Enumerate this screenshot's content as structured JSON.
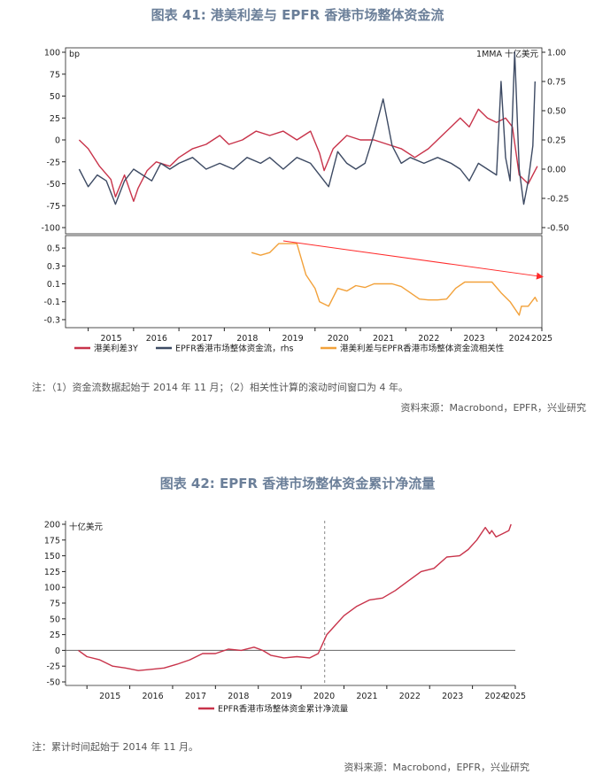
{
  "figure41": {
    "title": "图表 41: 港美利差与 EPFR 香港市场整体资金流",
    "note": "注：（1）资金流数据起始于 2014 年 11 月；（2）相关性计算的滚动时间窗口为 4 年。",
    "source": "资料来源：Macrobond，EPFR，兴业研究"
  },
  "figure42": {
    "title": "图表 42: EPFR 香港市场整体资金累计净流量",
    "note": "注：累计时间起始于 2014 年 11 月。",
    "source": "资料来源：Macrobond，EPFR，兴业研究"
  },
  "chart_data": [
    {
      "type": "line",
      "panel": "top",
      "left_unit": "bp",
      "right_unit": "1MMA 十亿美元",
      "x_ticks": [
        "2015",
        "2016",
        "2017",
        "2018",
        "2019",
        "2020",
        "2021",
        "2022",
        "2023",
        "2024",
        "2025"
      ],
      "y_left_ticks": [
        "100",
        "75",
        "50",
        "25",
        "0",
        "-25",
        "-50",
        "-75",
        "-100"
      ],
      "y_right_ticks": [
        "1.00",
        "0.75",
        "0.50",
        "0.25",
        "0.00",
        "-0.25",
        "-0.50"
      ],
      "ylim_left": [
        -100,
        100
      ],
      "ylim_right": [
        -0.5,
        1.0
      ],
      "series": [
        {
          "name": "港美利差3Y",
          "axis": "left",
          "color": "#c8334a",
          "x": [
            2014.8,
            2015.0,
            2015.25,
            2015.5,
            2015.6,
            2015.8,
            2016.0,
            2016.1,
            2016.3,
            2016.5,
            2016.8,
            2017.0,
            2017.3,
            2017.6,
            2017.9,
            2018.1,
            2018.4,
            2018.7,
            2019.0,
            2019.3,
            2019.6,
            2019.9,
            2020.1,
            2020.2,
            2020.4,
            2020.7,
            2021.0,
            2021.3,
            2021.6,
            2021.9,
            2022.2,
            2022.5,
            2022.8,
            2023.0,
            2023.2,
            2023.4,
            2023.6,
            2023.8,
            2024.0,
            2024.2,
            2024.35,
            2024.5,
            2024.7,
            2024.9
          ],
          "values": [
            0,
            -10,
            -30,
            -45,
            -65,
            -40,
            -70,
            -55,
            -35,
            -25,
            -30,
            -20,
            -10,
            -5,
            5,
            -5,
            0,
            10,
            5,
            10,
            0,
            10,
            -15,
            -35,
            -10,
            5,
            0,
            0,
            -5,
            -10,
            -20,
            -10,
            5,
            15,
            25,
            15,
            35,
            25,
            20,
            25,
            15,
            -40,
            -50,
            -30
          ]
        },
        {
          "name": "EPFR香港市场整体资金流，rhs",
          "axis": "right",
          "color": "#3d4a63",
          "x": [
            2014.8,
            2015.0,
            2015.2,
            2015.4,
            2015.6,
            2015.8,
            2016.0,
            2016.2,
            2016.4,
            2016.6,
            2016.8,
            2017.0,
            2017.3,
            2017.6,
            2017.9,
            2018.2,
            2018.5,
            2018.8,
            2019.0,
            2019.3,
            2019.6,
            2019.9,
            2020.1,
            2020.3,
            2020.5,
            2020.7,
            2020.9,
            2021.1,
            2021.3,
            2021.5,
            2021.7,
            2021.9,
            2022.1,
            2022.4,
            2022.7,
            2023.0,
            2023.2,
            2023.4,
            2023.6,
            2023.8,
            2024.0,
            2024.1,
            2024.2,
            2024.3,
            2024.4,
            2024.5,
            2024.6,
            2024.7,
            2024.8,
            2024.85
          ],
          "values": [
            0.0,
            -0.15,
            -0.05,
            -0.1,
            -0.3,
            -0.1,
            0.0,
            -0.05,
            -0.1,
            0.05,
            0.0,
            0.05,
            0.1,
            0.0,
            0.05,
            0.0,
            0.1,
            0.05,
            0.1,
            0.0,
            0.1,
            0.05,
            -0.05,
            -0.15,
            0.15,
            0.05,
            0.0,
            0.05,
            0.3,
            0.6,
            0.2,
            0.05,
            0.1,
            0.05,
            0.1,
            0.05,
            0.0,
            -0.1,
            0.05,
            0.0,
            -0.05,
            0.75,
            0.1,
            -0.1,
            1.0,
            0.0,
            -0.3,
            -0.1,
            0.2,
            0.75
          ]
        }
      ]
    },
    {
      "type": "line",
      "panel": "bottom",
      "x_ticks": [
        "2015",
        "2016",
        "2017",
        "2018",
        "2019",
        "2020",
        "2021",
        "2022",
        "2023",
        "2024",
        "2025"
      ],
      "y_ticks": [
        "0.5",
        "0.3",
        "0.1",
        "-0.1",
        "-0.3"
      ],
      "ylim": [
        -0.35,
        0.6
      ],
      "series": [
        {
          "name": "港美利差与EPFR香港市场整体资金流相关性",
          "color": "#f2a13a",
          "x": [
            2018.6,
            2018.8,
            2019.0,
            2019.2,
            2019.4,
            2019.6,
            2019.8,
            2020.0,
            2020.1,
            2020.3,
            2020.5,
            2020.7,
            2020.9,
            2021.1,
            2021.3,
            2021.5,
            2021.7,
            2021.9,
            2022.1,
            2022.3,
            2022.5,
            2022.7,
            2022.9,
            2023.1,
            2023.3,
            2023.5,
            2023.7,
            2023.9,
            2024.1,
            2024.3,
            2024.5,
            2024.55,
            2024.7,
            2024.85,
            2024.9
          ],
          "values": [
            0.45,
            0.42,
            0.45,
            0.55,
            0.55,
            0.55,
            0.2,
            0.05,
            -0.1,
            -0.15,
            0.05,
            0.02,
            0.08,
            0.06,
            0.1,
            0.1,
            0.1,
            0.07,
            0.0,
            -0.07,
            -0.08,
            -0.08,
            -0.07,
            0.05,
            0.12,
            0.12,
            0.12,
            0.12,
            0.0,
            -0.1,
            -0.25,
            -0.15,
            -0.15,
            -0.05,
            -0.1
          ]
        }
      ],
      "annotation": {
        "type": "arrow",
        "from": [
          2019.3,
          0.58
        ],
        "to": [
          2025.0,
          0.18
        ],
        "color": "#ff2a2a"
      }
    },
    {
      "type": "line",
      "title": "图表 42: EPFR 香港市场整体资金累计净流量",
      "unit": "十亿美元",
      "x_ticks": [
        "2015",
        "2016",
        "2017",
        "2018",
        "2019",
        "2020",
        "2021",
        "2022",
        "2023",
        "2024",
        "2025"
      ],
      "y_ticks": [
        "200",
        "175",
        "150",
        "125",
        "100",
        "75",
        "50",
        "25",
        "0",
        "-25",
        "-50"
      ],
      "ylim": [
        -50,
        200
      ],
      "series": [
        {
          "name": "EPFR香港市场整体资金累计净流量",
          "color": "#c8334a",
          "x": [
            2014.8,
            2015.0,
            2015.3,
            2015.6,
            2015.9,
            2016.2,
            2016.5,
            2016.8,
            2017.1,
            2017.4,
            2017.7,
            2018.0,
            2018.3,
            2018.6,
            2018.9,
            2019.1,
            2019.3,
            2019.6,
            2019.9,
            2020.2,
            2020.4,
            2020.6,
            2020.8,
            2021.0,
            2021.3,
            2021.6,
            2021.9,
            2022.2,
            2022.5,
            2022.8,
            2023.1,
            2023.4,
            2023.7,
            2023.9,
            2024.1,
            2024.3,
            2024.4,
            2024.45,
            2024.55,
            2024.7,
            2024.85,
            2024.9
          ],
          "values": [
            0,
            -10,
            -15,
            -25,
            -28,
            -32,
            -30,
            -28,
            -22,
            -15,
            -5,
            -5,
            2,
            0,
            5,
            0,
            -8,
            -12,
            -10,
            -12,
            -5,
            25,
            40,
            55,
            70,
            80,
            83,
            95,
            110,
            125,
            130,
            148,
            150,
            160,
            175,
            195,
            185,
            190,
            180,
            185,
            190,
            200
          ]
        }
      ],
      "vline_x": 2020.55
    }
  ],
  "legend41": {
    "item1": "港美利差3Y",
    "item2": "EPFR香港市场整体资金流，rhs",
    "item3": "港美利差与EPFR香港市场整体资金流相关性"
  },
  "legend42": {
    "item1": "EPFR香港市场整体资金累计净流量"
  },
  "colors": {
    "red": "#c8334a",
    "navy": "#3d4a63",
    "orange": "#f2a13a",
    "arrow": "#ff2a2a",
    "title": "#6b7f99"
  }
}
